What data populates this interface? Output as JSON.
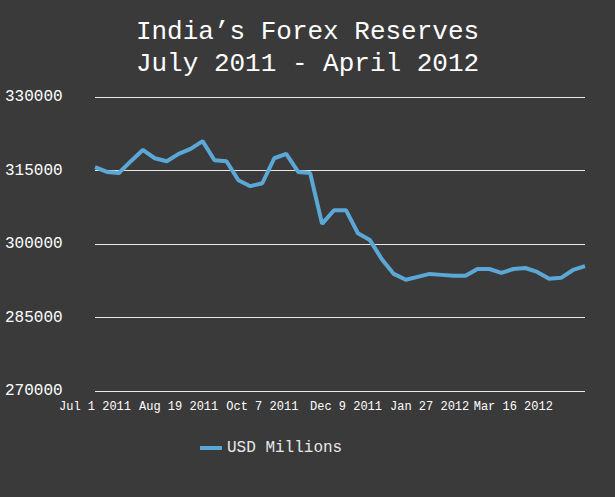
{
  "chart_data": {
    "type": "line",
    "title": "India’s Forex Reserves",
    "subtitle": "July 2011 - April 2012",
    "categories": [
      "Jul 1 2011",
      null,
      null,
      null,
      null,
      null,
      null,
      "Aug 19 2011",
      null,
      null,
      null,
      null,
      null,
      null,
      "Oct 7 2011",
      null,
      null,
      null,
      null,
      null,
      null,
      "Dec 9 2011",
      null,
      null,
      null,
      null,
      null,
      null,
      "Jan 27 2012",
      null,
      null,
      null,
      null,
      null,
      null,
      "Mar 16 2012",
      null,
      null,
      null,
      null,
      null,
      null
    ],
    "series": [
      {
        "name": "USD Millions",
        "color": "#5ba8d6",
        "values": [
          315700,
          314700,
          314500,
          316900,
          319200,
          317500,
          316900,
          318400,
          319400,
          321000,
          317100,
          316900,
          313000,
          311800,
          312400,
          317500,
          318400,
          314700,
          314500,
          304100,
          306900,
          306900,
          302200,
          300800,
          296900,
          293900,
          292700,
          293300,
          293900,
          293700,
          293500,
          293500,
          294900,
          294900,
          294100,
          294900,
          295100,
          294300,
          292900,
          293100,
          294700,
          295500
        ]
      }
    ],
    "ylim": [
      270000,
      330000
    ],
    "yticks": [
      270000,
      285000,
      300000,
      315000,
      330000
    ],
    "grid": true,
    "legend": "bottom"
  }
}
